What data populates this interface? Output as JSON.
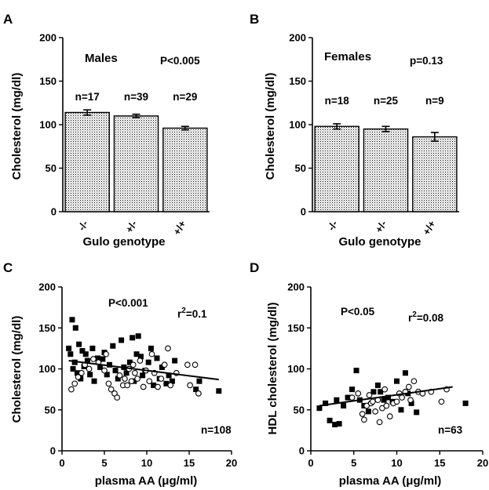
{
  "figure": {
    "panels": [
      "A",
      "B",
      "C",
      "D"
    ]
  },
  "chart_data": [
    {
      "panel": "A",
      "type": "bar",
      "title": "Males",
      "annotation": "P<0.005",
      "xlabel": "Gulo genotype",
      "ylabel": "Cholesterol (mg/dl)",
      "ylim": [
        0,
        200
      ],
      "yticks": [
        "0",
        "50",
        "100",
        "150",
        "200"
      ],
      "categories": [
        "-/-",
        "+/-",
        "+/+"
      ],
      "values": [
        114,
        110,
        96
      ],
      "errors": [
        3,
        2,
        2
      ],
      "n_labels": [
        "n=17",
        "n=39",
        "n=29"
      ],
      "bar_fill": "#cfcfcf",
      "grid": false
    },
    {
      "panel": "B",
      "type": "bar",
      "title": "Females",
      "annotation": "p=0.13",
      "xlabel": "Gulo genotype",
      "ylabel": "Cholesterol (mg/dl)",
      "ylim": [
        0,
        200
      ],
      "yticks": [
        "0",
        "50",
        "100",
        "150",
        "200"
      ],
      "categories": [
        "-/-",
        "+/-",
        "+/+"
      ],
      "values": [
        98,
        95,
        86
      ],
      "errors": [
        3,
        3,
        5
      ],
      "n_labels": [
        "n=18",
        "n=25",
        "n=9"
      ],
      "bar_fill": "#cfcfcf",
      "grid": false
    },
    {
      "panel": "C",
      "type": "scatter",
      "annotation": "P<0.001",
      "r2_label": "r2=0.1",
      "n_label": "n=108",
      "xlabel": "plasma AA (μg/ml)",
      "ylabel": "Cholesterol (mg/dl)",
      "xlim": [
        0,
        20
      ],
      "ylim": [
        0,
        200
      ],
      "xticks": [
        "0",
        "5",
        "10",
        "15",
        "20"
      ],
      "yticks": [
        "0",
        "50",
        "100",
        "150",
        "200"
      ],
      "grid": false,
      "fit_line": {
        "x": [
          0.8,
          18.5
        ],
        "y": [
          110,
          87
        ]
      },
      "series": [
        {
          "marker": "filled-square",
          "x": [
            0.8,
            1.0,
            1.2,
            1.3,
            1.5,
            1.6,
            1.8,
            2.0,
            2.2,
            2.4,
            2.6,
            2.8,
            3.0,
            3.3,
            3.6,
            3.8,
            4.2,
            4.5,
            4.8,
            5.0,
            5.3,
            5.6,
            6.0,
            6.3,
            6.6,
            7.0,
            7.3,
            7.6,
            8.0,
            8.3,
            8.5,
            8.8,
            9.0,
            9.3,
            9.5,
            9.8,
            10.2,
            10.5,
            10.8,
            11.2,
            11.5,
            11.8,
            12.3,
            12.6,
            13.0,
            13.3,
            15.8,
            16.2,
            18.5
          ],
          "y": [
            125,
            118,
            160,
            100,
            108,
            150,
            95,
            130,
            88,
            122,
            103,
            118,
            110,
            93,
            125,
            85,
            113,
            102,
            112,
            120,
            93,
            105,
            128,
            98,
            88,
            135,
            102,
            95,
            108,
            138,
            85,
            118,
            140,
            115,
            92,
            98,
            108,
            125,
            80,
            113,
            88,
            102,
            82,
            92,
            85,
            110,
            75,
            85,
            73
          ]
        },
        {
          "marker": "open-circle",
          "x": [
            1.1,
            1.5,
            1.9,
            2.3,
            2.7,
            3.2,
            3.7,
            4.3,
            5.0,
            5.2,
            5.5,
            5.8,
            6.2,
            6.5,
            6.8,
            7.2,
            7.4,
            7.7,
            7.9,
            8.2,
            8.4,
            8.6,
            8.9,
            9.2,
            9.6,
            9.9,
            10.3,
            10.6,
            10.9,
            11.3,
            11.7,
            12.1,
            12.5,
            12.8,
            13.5,
            14.8,
            15.1,
            15.7,
            16.1
          ],
          "y": [
            75,
            82,
            90,
            95,
            105,
            100,
            112,
            108,
            98,
            118,
            82,
            75,
            70,
            65,
            92,
            80,
            88,
            80,
            100,
            85,
            105,
            95,
            88,
            110,
            78,
            98,
            85,
            118,
            95,
            78,
            88,
            105,
            125,
            80,
            95,
            105,
            80,
            105,
            70
          ]
        }
      ]
    },
    {
      "panel": "D",
      "type": "scatter",
      "annotation": "P<0.05",
      "r2_label": "r2=0.08",
      "n_label": "n=63",
      "xlabel": "plasma AA (μg/ml)",
      "ylabel": "HDL cholesterol (mg/dl)",
      "xlim": [
        0,
        20
      ],
      "ylim": [
        0,
        200
      ],
      "xticks": [
        "0",
        "5",
        "10",
        "15",
        "20"
      ],
      "yticks": [
        "0",
        "50",
        "100",
        "150",
        "200"
      ],
      "grid": false,
      "fit_line": {
        "x": [
          1.0,
          16.5
        ],
        "y": [
          55,
          78
        ]
      },
      "series": [
        {
          "marker": "filled-square",
          "x": [
            1.0,
            1.7,
            2.2,
            2.8,
            3.0,
            3.3,
            3.8,
            4.3,
            4.8,
            5.3,
            5.7,
            6.2,
            6.7,
            7.3,
            7.8,
            8.1,
            8.5,
            9.0,
            9.5,
            10.0,
            10.5,
            11.0,
            11.3,
            11.7,
            12.3,
            18.0
          ],
          "y": [
            52,
            58,
            37,
            32,
            62,
            33,
            55,
            65,
            75,
            98,
            62,
            55,
            48,
            72,
            80,
            72,
            62,
            65,
            60,
            85,
            50,
            95,
            70,
            58,
            47,
            58
          ]
        },
        {
          "marker": "open-circle",
          "x": [
            4.8,
            5.5,
            6.0,
            6.2,
            6.5,
            6.8,
            7.0,
            7.2,
            7.5,
            7.8,
            8.0,
            8.3,
            8.6,
            8.8,
            9.2,
            9.6,
            10.0,
            10.3,
            10.6,
            11.0,
            11.4,
            11.6,
            12.0,
            12.5,
            13.0,
            14.0,
            15.2,
            15.8
          ],
          "y": [
            65,
            70,
            45,
            38,
            55,
            68,
            58,
            60,
            48,
            62,
            35,
            52,
            75,
            55,
            42,
            58,
            60,
            70,
            65,
            72,
            78,
            62,
            85,
            72,
            70,
            72,
            60,
            75
          ]
        }
      ]
    }
  ]
}
